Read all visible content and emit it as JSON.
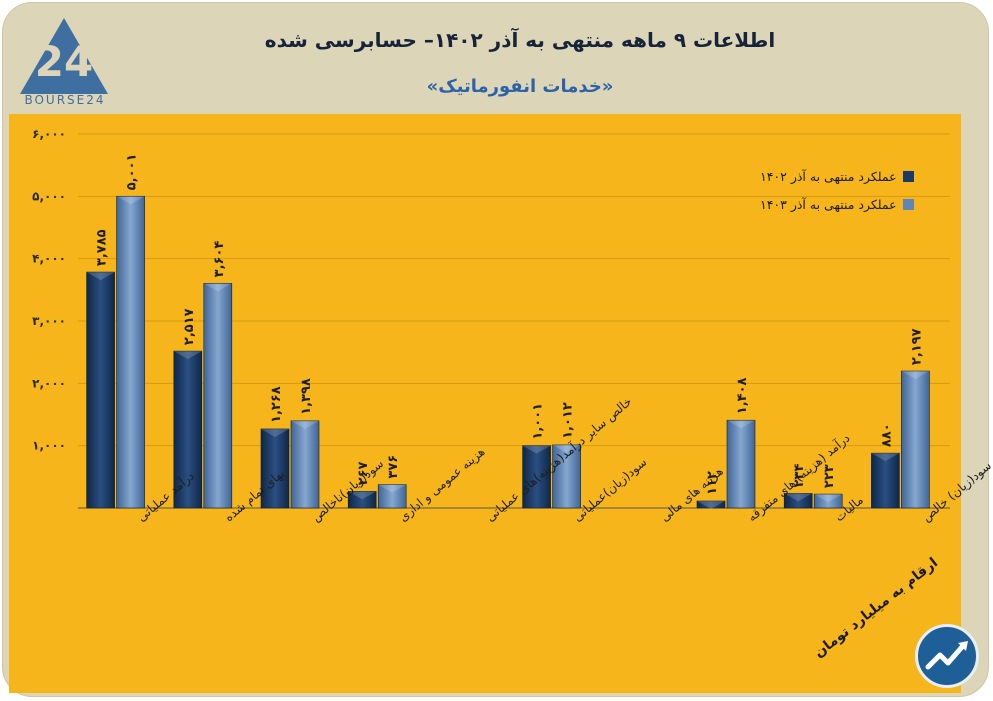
{
  "header": {
    "logo_text": "BOURSE24",
    "title": "اطلاعات ۹ ماهه منتهی به آذر ۱۴۰۲– حسابرسی شده",
    "subtitle": "«خدمات انفورماتیک»"
  },
  "footnote": "ارقام به میلیارد تومان",
  "chart_data": {
    "type": "bar",
    "categories": [
      "درآمد عملیاتی",
      "بهای تمام شده",
      "سود(زیان)ناخالص",
      "هزینه عمومی و اداری",
      "خالص سایر درآمد(هزینه)های عملیاتی",
      "سود(زیان)عملیاتی",
      "هزینه های مالی",
      "درآمد (هزینه) های متفرقه",
      "مالیات",
      "سود(زیان) خالص"
    ],
    "series": [
      {
        "name": "عملکرد منتهی به آذر ۱۴۰۲",
        "values": [
          3785,
          2517,
          1268,
          267,
          null,
          1001,
          null,
          112,
          234,
          880
        ],
        "labels": [
          "۳,۷۸۵",
          "۲,۵۱۷",
          "۱,۲۶۸",
          "۲۶۷",
          "",
          "۱,۰۰۱",
          "",
          "۱۱۲",
          "۲۳۴",
          "۸۸۰"
        ]
      },
      {
        "name": "عملکرد منتهی به آذر ۱۴۰۳",
        "values": [
          5001,
          3604,
          1398,
          376,
          null,
          1012,
          null,
          1408,
          223,
          2197
        ],
        "labels": [
          "۵,۰۰۱",
          "۳,۶۰۴",
          "۱,۳۹۸",
          "۳۷۶",
          "",
          "۱,۰۱۲",
          "",
          "۱,۴۰۸",
          "۲۲۳",
          "۲,۱۹۷"
        ]
      }
    ],
    "ylim": [
      0,
      6000
    ],
    "yticks": [
      1000,
      2000,
      3000,
      4000,
      5000,
      6000
    ],
    "ytick_labels": [
      "۱,۰۰۰",
      "۲,۰۰۰",
      "۳,۰۰۰",
      "۴,۰۰۰",
      "۵,۰۰۰",
      "۶,۰۰۰"
    ],
    "grid": true,
    "legend_position": "top-right",
    "colors": [
      "#1b3a66",
      "#5f86b8"
    ]
  }
}
